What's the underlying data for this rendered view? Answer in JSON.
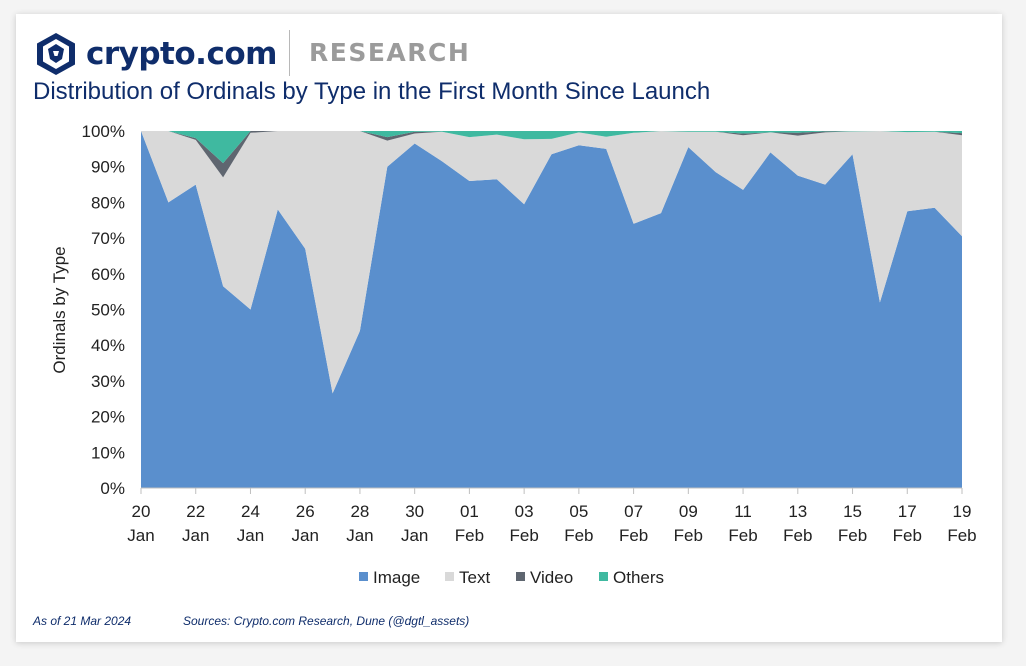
{
  "header": {
    "brand": "crypto.com",
    "section": "RESEARCH",
    "title": "Distribution of Ordinals by Type in the First Month Since Launch"
  },
  "footer": {
    "as_of": "As of 21 Mar 2024",
    "sources": "Sources: Crypto.com Research, Dune (@dgtl_assets)"
  },
  "colors": {
    "brand_navy": "#0f2d6b",
    "image": "#5a8fcd",
    "text": "#d9d9d9",
    "video": "#5f6670",
    "others": "#3fb9a0"
  },
  "chart_data": {
    "type": "area",
    "stacked": "percent",
    "title": "Distribution of Ordinals by Type in the First Month Since Launch",
    "ylabel": "Ordinals by Type",
    "xlabel": "",
    "ylim": [
      0,
      100
    ],
    "yticks": [
      "0%",
      "10%",
      "20%",
      "30%",
      "40%",
      "50%",
      "60%",
      "70%",
      "80%",
      "90%",
      "100%"
    ],
    "x": [
      "20 Jan",
      "21 Jan",
      "22 Jan",
      "23 Jan",
      "24 Jan",
      "25 Jan",
      "26 Jan",
      "27 Jan",
      "28 Jan",
      "29 Jan",
      "30 Jan",
      "31 Jan",
      "01 Feb",
      "02 Feb",
      "03 Feb",
      "04 Feb",
      "05 Feb",
      "06 Feb",
      "07 Feb",
      "08 Feb",
      "09 Feb",
      "10 Feb",
      "11 Feb",
      "12 Feb",
      "13 Feb",
      "14 Feb",
      "15 Feb",
      "16 Feb",
      "17 Feb",
      "18 Feb",
      "19 Feb"
    ],
    "xtick_labels": [
      {
        "day": "20",
        "month": "Jan"
      },
      {
        "day": "22",
        "month": "Jan"
      },
      {
        "day": "24",
        "month": "Jan"
      },
      {
        "day": "26",
        "month": "Jan"
      },
      {
        "day": "28",
        "month": "Jan"
      },
      {
        "day": "30",
        "month": "Jan"
      },
      {
        "day": "01",
        "month": "Feb"
      },
      {
        "day": "03",
        "month": "Feb"
      },
      {
        "day": "05",
        "month": "Feb"
      },
      {
        "day": "07",
        "month": "Feb"
      },
      {
        "day": "09",
        "month": "Feb"
      },
      {
        "day": "11",
        "month": "Feb"
      },
      {
        "day": "13",
        "month": "Feb"
      },
      {
        "day": "15",
        "month": "Feb"
      },
      {
        "day": "17",
        "month": "Feb"
      },
      {
        "day": "19",
        "month": "Feb"
      }
    ],
    "series": [
      {
        "name": "Image",
        "values": [
          100,
          80,
          85,
          56.5,
          50,
          78,
          67,
          26.5,
          44,
          90,
          96.5,
          91.5,
          86,
          86.5,
          79.5,
          93.5,
          96,
          95,
          74,
          77,
          95.5,
          88.5,
          83.5,
          94,
          87.5,
          85,
          93.5,
          52,
          77.5,
          78.5,
          70.5
        ]
      },
      {
        "name": "Text",
        "values": [
          0,
          20,
          12.5,
          30.5,
          49.5,
          22,
          33,
          73.5,
          56,
          7.3,
          2.8,
          8.3,
          12.3,
          12.5,
          18.2,
          4.3,
          3.6,
          3.4,
          25.5,
          23,
          4.3,
          11.3,
          15.3,
          5.6,
          11.2,
          14.6,
          6.4,
          48,
          22.2,
          21.3,
          28.3
        ]
      },
      {
        "name": "Video",
        "values": [
          0,
          0,
          0.5,
          4,
          0.5,
          0,
          0,
          0,
          0,
          1,
          0.5,
          0,
          0,
          0,
          0,
          0,
          0,
          0,
          0,
          0,
          0,
          0,
          0.5,
          0,
          0.8,
          0.3,
          0,
          0,
          0,
          0,
          0.6
        ]
      },
      {
        "name": "Others",
        "values": [
          0,
          0,
          2,
          9,
          0,
          0,
          0,
          0,
          0,
          1.7,
          0.2,
          0.2,
          1.7,
          1,
          2.3,
          2.2,
          0.4,
          1.6,
          0.5,
          0,
          0.2,
          0.2,
          0.7,
          0.4,
          0.5,
          0.1,
          0.1,
          0,
          0.3,
          0.2,
          0.6
        ]
      }
    ],
    "legend_position": "bottom",
    "grid": false
  }
}
